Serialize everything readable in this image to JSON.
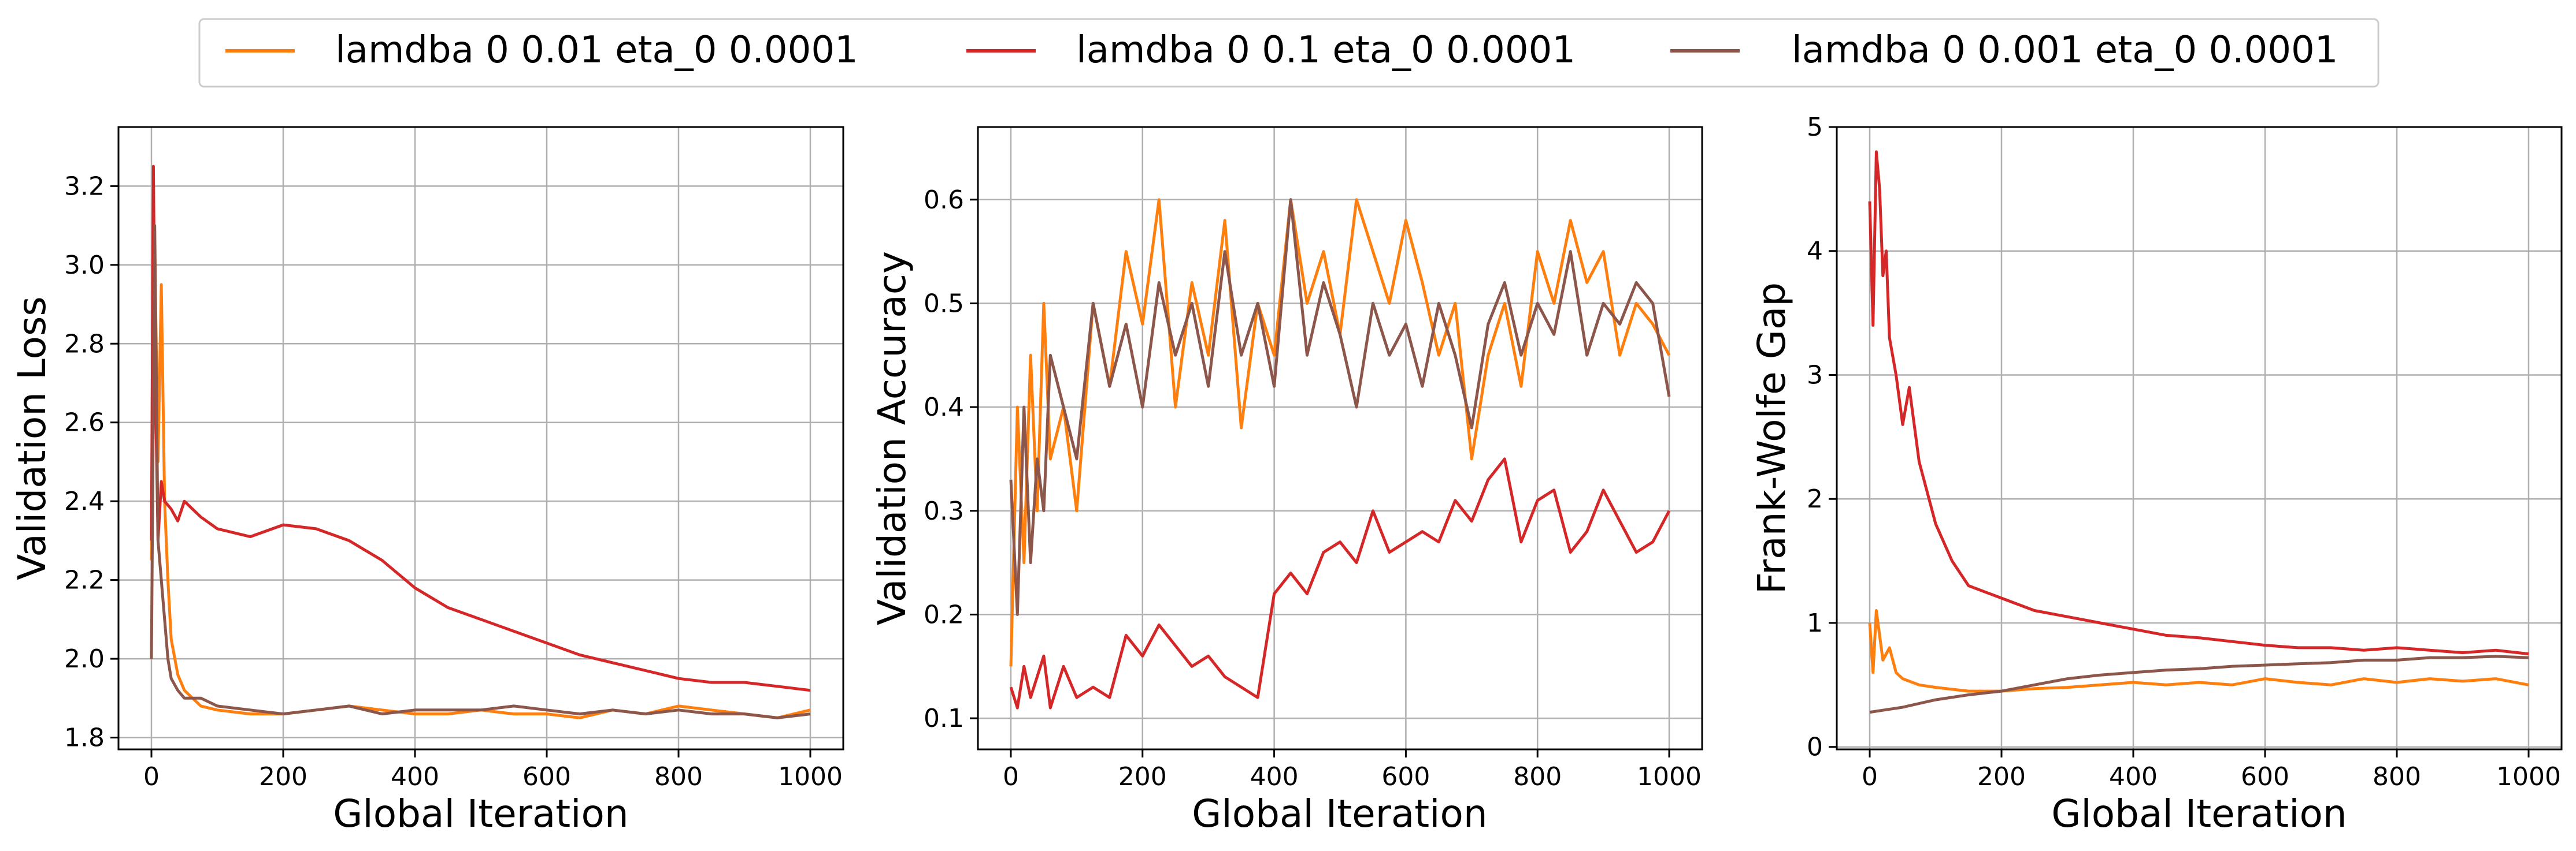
{
  "legend": {
    "entries": [
      {
        "label": "lamdba 0 0.01 eta_0 0.0001",
        "color": "#ff7f0e"
      },
      {
        "label": "lamdba 0 0.1 eta_0 0.0001",
        "color": "#d62728"
      },
      {
        "label": "lamdba 0 0.001 eta_0 0.0001",
        "color": "#8c564b"
      }
    ],
    "placement": "top-center"
  },
  "chart_data": [
    {
      "type": "line",
      "title": "",
      "xlabel": "Global Iteration",
      "ylabel": "Validation Loss",
      "xlim": [
        -50,
        1050
      ],
      "ylim": [
        1.77,
        3.35
      ],
      "xticks": [
        0,
        200,
        400,
        600,
        800,
        1000
      ],
      "yticks": [
        1.8,
        2.0,
        2.2,
        2.4,
        2.6,
        2.8,
        3.0,
        3.2
      ],
      "ytick_decimals": 1,
      "grid": true,
      "series": [
        {
          "name": "lamdba 0 0.01 eta_0 0.0001",
          "color": "#ff7f0e",
          "x": [
            0,
            5,
            10,
            15,
            20,
            25,
            30,
            40,
            50,
            75,
            100,
            150,
            200,
            250,
            300,
            350,
            400,
            450,
            500,
            550,
            600,
            650,
            700,
            750,
            800,
            850,
            900,
            950,
            1000
          ],
          "y": [
            2.25,
            3.05,
            2.5,
            2.95,
            2.4,
            2.2,
            2.05,
            1.96,
            1.92,
            1.88,
            1.87,
            1.86,
            1.86,
            1.87,
            1.88,
            1.87,
            1.86,
            1.86,
            1.87,
            1.86,
            1.86,
            1.85,
            1.87,
            1.86,
            1.88,
            1.87,
            1.86,
            1.85,
            1.87
          ]
        },
        {
          "name": "lamdba 0 0.1 eta_0 0.0001",
          "color": "#d62728",
          "x": [
            0,
            3,
            6,
            10,
            15,
            20,
            30,
            40,
            50,
            75,
            100,
            150,
            200,
            250,
            300,
            350,
            400,
            450,
            500,
            550,
            600,
            650,
            700,
            750,
            800,
            850,
            900,
            950,
            1000
          ],
          "y": [
            2.3,
            3.25,
            2.7,
            2.3,
            2.45,
            2.4,
            2.38,
            2.35,
            2.4,
            2.36,
            2.33,
            2.31,
            2.34,
            2.33,
            2.3,
            2.25,
            2.18,
            2.13,
            2.1,
            2.07,
            2.04,
            2.01,
            1.99,
            1.97,
            1.95,
            1.94,
            1.94,
            1.93,
            1.92
          ]
        },
        {
          "name": "lamdba 0 0.001 eta_0 0.0001",
          "color": "#8c564b",
          "x": [
            0,
            5,
            10,
            15,
            20,
            25,
            30,
            40,
            50,
            75,
            100,
            150,
            200,
            250,
            300,
            350,
            400,
            450,
            500,
            550,
            600,
            650,
            700,
            750,
            800,
            850,
            900,
            950,
            1000
          ],
          "y": [
            2.0,
            3.1,
            2.3,
            2.2,
            2.1,
            2.0,
            1.95,
            1.92,
            1.9,
            1.9,
            1.88,
            1.87,
            1.86,
            1.87,
            1.88,
            1.86,
            1.87,
            1.87,
            1.87,
            1.88,
            1.87,
            1.86,
            1.87,
            1.86,
            1.87,
            1.86,
            1.86,
            1.85,
            1.86
          ]
        }
      ]
    },
    {
      "type": "line",
      "title": "",
      "xlabel": "Global Iteration",
      "ylabel": "Validation Accuracy",
      "xlim": [
        -50,
        1050
      ],
      "ylim": [
        0.07,
        0.67
      ],
      "xticks": [
        0,
        200,
        400,
        600,
        800,
        1000
      ],
      "yticks": [
        0.1,
        0.2,
        0.3,
        0.4,
        0.5,
        0.6
      ],
      "ytick_decimals": 1,
      "grid": true,
      "series": [
        {
          "name": "lamdba 0 0.01 eta_0 0.0001",
          "color": "#ff7f0e",
          "x": [
            0,
            10,
            20,
            30,
            40,
            50,
            60,
            80,
            100,
            125,
            150,
            175,
            200,
            225,
            250,
            275,
            300,
            325,
            350,
            375,
            400,
            425,
            450,
            475,
            500,
            525,
            550,
            575,
            600,
            625,
            650,
            675,
            700,
            725,
            750,
            775,
            800,
            825,
            850,
            875,
            900,
            925,
            950,
            975,
            1000
          ],
          "y": [
            0.15,
            0.4,
            0.25,
            0.45,
            0.3,
            0.5,
            0.35,
            0.4,
            0.3,
            0.5,
            0.42,
            0.55,
            0.48,
            0.6,
            0.4,
            0.52,
            0.45,
            0.58,
            0.38,
            0.5,
            0.45,
            0.6,
            0.5,
            0.55,
            0.47,
            0.6,
            0.55,
            0.5,
            0.58,
            0.52,
            0.45,
            0.5,
            0.35,
            0.45,
            0.5,
            0.42,
            0.55,
            0.5,
            0.58,
            0.52,
            0.55,
            0.45,
            0.5,
            0.48,
            0.45
          ]
        },
        {
          "name": "lamdba 0 0.1 eta_0 0.0001",
          "color": "#d62728",
          "x": [
            0,
            10,
            20,
            30,
            40,
            50,
            60,
            80,
            100,
            125,
            150,
            175,
            200,
            225,
            250,
            275,
            300,
            325,
            350,
            375,
            400,
            425,
            450,
            475,
            500,
            525,
            550,
            575,
            600,
            625,
            650,
            675,
            700,
            725,
            750,
            775,
            800,
            825,
            850,
            875,
            900,
            925,
            950,
            975,
            1000
          ],
          "y": [
            0.13,
            0.11,
            0.15,
            0.12,
            0.14,
            0.16,
            0.11,
            0.15,
            0.12,
            0.13,
            0.12,
            0.18,
            0.16,
            0.19,
            0.17,
            0.15,
            0.16,
            0.14,
            0.13,
            0.12,
            0.22,
            0.24,
            0.22,
            0.26,
            0.27,
            0.25,
            0.3,
            0.26,
            0.27,
            0.28,
            0.27,
            0.31,
            0.29,
            0.33,
            0.35,
            0.27,
            0.31,
            0.32,
            0.26,
            0.28,
            0.32,
            0.29,
            0.26,
            0.27,
            0.3
          ]
        },
        {
          "name": "lamdba 0 0.001 eta_0 0.0001",
          "color": "#8c564b",
          "x": [
            0,
            10,
            20,
            30,
            40,
            50,
            60,
            80,
            100,
            125,
            150,
            175,
            200,
            225,
            250,
            275,
            300,
            325,
            350,
            375,
            400,
            425,
            450,
            475,
            500,
            525,
            550,
            575,
            600,
            625,
            650,
            675,
            700,
            725,
            750,
            775,
            800,
            825,
            850,
            875,
            900,
            925,
            950,
            975,
            1000
          ],
          "y": [
            0.33,
            0.2,
            0.4,
            0.25,
            0.35,
            0.3,
            0.45,
            0.4,
            0.35,
            0.5,
            0.42,
            0.48,
            0.4,
            0.52,
            0.45,
            0.5,
            0.42,
            0.55,
            0.45,
            0.5,
            0.42,
            0.6,
            0.45,
            0.52,
            0.47,
            0.4,
            0.5,
            0.45,
            0.48,
            0.42,
            0.5,
            0.45,
            0.38,
            0.48,
            0.52,
            0.45,
            0.5,
            0.47,
            0.55,
            0.45,
            0.5,
            0.48,
            0.52,
            0.5,
            0.41
          ]
        }
      ]
    },
    {
      "type": "line",
      "title": "",
      "xlabel": "Global Iteration",
      "ylabel": "Frank-Wolfe Gap",
      "xlim": [
        -50,
        1050
      ],
      "ylim": [
        -0.02,
        5.0
      ],
      "xticks": [
        0,
        200,
        400,
        600,
        800,
        1000
      ],
      "yticks": [
        0,
        1,
        2,
        3,
        4,
        5
      ],
      "ytick_decimals": 0,
      "grid": true,
      "series": [
        {
          "name": "lamdba 0 0.01 eta_0 0.0001",
          "color": "#ff7f0e",
          "x": [
            0,
            5,
            10,
            20,
            30,
            40,
            50,
            75,
            100,
            150,
            200,
            250,
            300,
            350,
            400,
            450,
            500,
            550,
            600,
            650,
            700,
            750,
            800,
            850,
            900,
            950,
            1000
          ],
          "y": [
            1.0,
            0.6,
            1.1,
            0.7,
            0.8,
            0.6,
            0.55,
            0.5,
            0.48,
            0.45,
            0.45,
            0.47,
            0.48,
            0.5,
            0.52,
            0.5,
            0.52,
            0.5,
            0.55,
            0.52,
            0.5,
            0.55,
            0.52,
            0.55,
            0.53,
            0.55,
            0.5
          ]
        },
        {
          "name": "lamdba 0 0.1 eta_0 0.0001",
          "color": "#d62728",
          "x": [
            0,
            5,
            10,
            15,
            20,
            25,
            30,
            40,
            50,
            60,
            75,
            90,
            100,
            125,
            150,
            175,
            200,
            250,
            300,
            350,
            400,
            450,
            500,
            550,
            600,
            650,
            700,
            750,
            800,
            850,
            900,
            950,
            1000
          ],
          "y": [
            4.4,
            3.4,
            4.8,
            4.5,
            3.8,
            4.0,
            3.3,
            3.0,
            2.6,
            2.9,
            2.3,
            2.0,
            1.8,
            1.5,
            1.3,
            1.25,
            1.2,
            1.1,
            1.05,
            1.0,
            0.95,
            0.9,
            0.88,
            0.85,
            0.82,
            0.8,
            0.8,
            0.78,
            0.8,
            0.78,
            0.76,
            0.78,
            0.75
          ]
        },
        {
          "name": "lamdba 0 0.001 eta_0 0.0001",
          "color": "#8c564b",
          "x": [
            0,
            25,
            50,
            75,
            100,
            150,
            200,
            250,
            300,
            350,
            400,
            450,
            500,
            550,
            600,
            650,
            700,
            750,
            800,
            850,
            900,
            950,
            1000
          ],
          "y": [
            0.28,
            0.3,
            0.32,
            0.35,
            0.38,
            0.42,
            0.45,
            0.5,
            0.55,
            0.58,
            0.6,
            0.62,
            0.63,
            0.65,
            0.66,
            0.67,
            0.68,
            0.7,
            0.7,
            0.72,
            0.72,
            0.73,
            0.72
          ]
        }
      ]
    }
  ]
}
